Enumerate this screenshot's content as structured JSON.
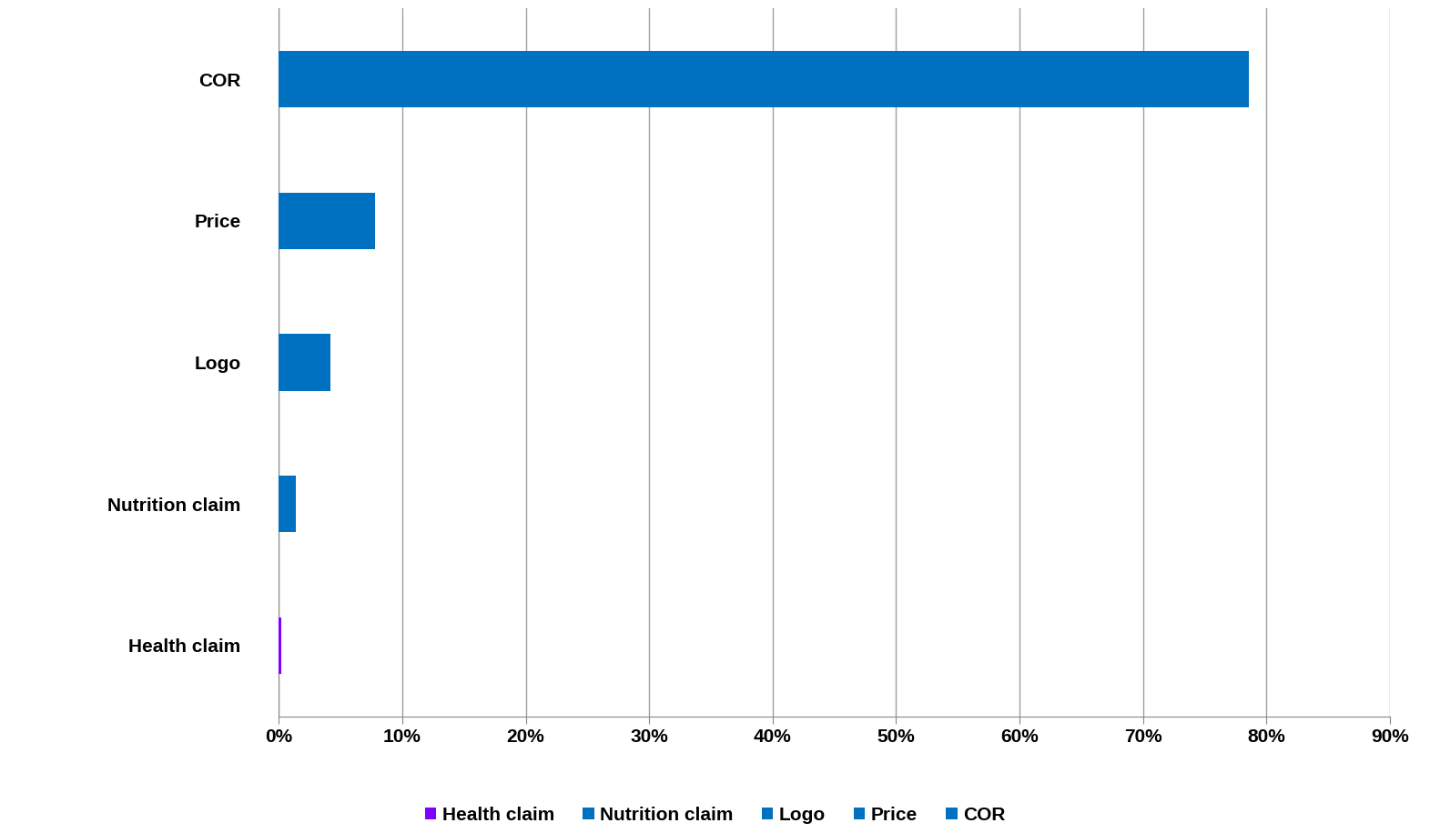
{
  "chart_data": {
    "type": "bar",
    "orientation": "horizontal",
    "categories": [
      "Health claim",
      "Nutrition claim",
      "Logo",
      "Price",
      "COR"
    ],
    "values": [
      0.2,
      1.4,
      4.2,
      7.8,
      78.6
    ],
    "colors": [
      "#7f00ff",
      "#0070c0",
      "#0070c0",
      "#0070c0",
      "#0070c0"
    ],
    "xlim": [
      0,
      90
    ],
    "xticks": [
      {
        "value": 0,
        "label": "0%"
      },
      {
        "value": 10,
        "label": "10%"
      },
      {
        "value": 20,
        "label": "20%"
      },
      {
        "value": 30,
        "label": "30%"
      },
      {
        "value": 40,
        "label": "40%"
      },
      {
        "value": 50,
        "label": "50%"
      },
      {
        "value": 60,
        "label": "60%"
      },
      {
        "value": 70,
        "label": "70%"
      },
      {
        "value": 80,
        "label": "80%"
      },
      {
        "value": 90,
        "label": "90%"
      }
    ],
    "grid": true,
    "legend": "lower center"
  }
}
